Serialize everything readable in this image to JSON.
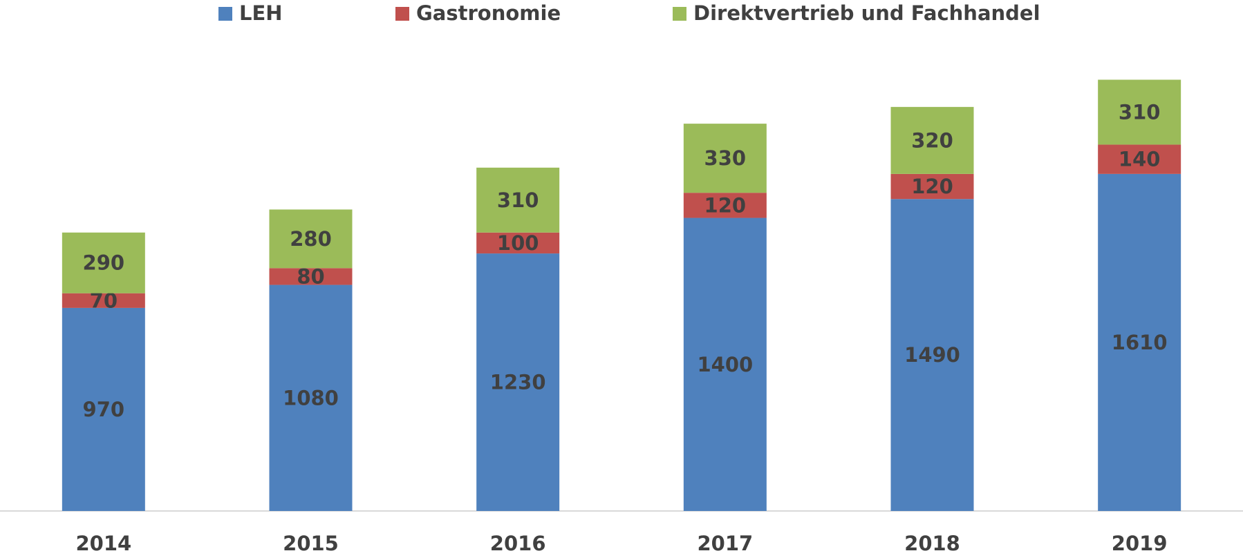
{
  "chart_data": {
    "type": "stacked-bar",
    "categories": [
      "2014",
      "2015",
      "2016",
      "2017",
      "2018",
      "2019"
    ],
    "series": [
      {
        "name": "LEH",
        "color": "#4f81bd",
        "values": [
          970,
          1080,
          1230,
          1400,
          1490,
          1610
        ]
      },
      {
        "name": "Gastronomie",
        "color": "#c0504d",
        "values": [
          70,
          80,
          100,
          120,
          120,
          140
        ]
      },
      {
        "name": "Direktvertrieb und Fachhandel",
        "color": "#9bbb59",
        "values": [
          290,
          280,
          310,
          330,
          320,
          310
        ]
      }
    ],
    "ylim": [
      0,
      2200
    ],
    "legend": "top"
  }
}
